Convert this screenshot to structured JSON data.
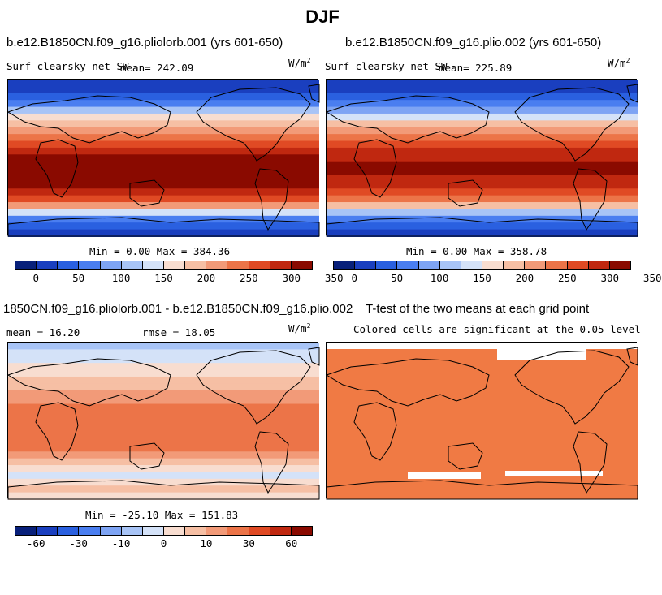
{
  "title": "DJF",
  "colors": {
    "sw_scale": [
      "#08207a",
      "#1a3fbf",
      "#2a60e0",
      "#4a7ef0",
      "#7ea4f4",
      "#a8c4f6",
      "#d4e2f8",
      "#f8ddd0",
      "#f6bfa4",
      "#f29a78",
      "#ec7448",
      "#e04a24",
      "#c02810",
      "#8a0a00"
    ],
    "diff_scale": [
      "#08207a",
      "#1a3fbf",
      "#2a60e0",
      "#4a7ef0",
      "#7ea4f4",
      "#a8c4f6",
      "#d4e2f8",
      "#f8ddd0",
      "#f6bfa4",
      "#f29a78",
      "#ec7448",
      "#e04a24",
      "#c02810",
      "#8a0a00"
    ],
    "significant": "#f07a44"
  },
  "chart_data": [
    {
      "type": "heatmap",
      "title": "b.e12.B1850CN.f09_g16.pliolorb.001 (yrs 601-650)",
      "variable": "Surf clearsky net SW",
      "mean_label": "mean= 242.09",
      "units": "W/m",
      "units_exp": "2",
      "minmax_label": "Min =   0.00 Max = 384.36",
      "min": 0.0,
      "max": 384.36,
      "mean": 242.09,
      "colorbar_ticks": [
        "0",
        "50",
        "100",
        "150",
        "200",
        "250",
        "300",
        "350"
      ]
    },
    {
      "type": "heatmap",
      "title": "b.e12.B1850CN.f09_g16.plio.002 (yrs 601-650)",
      "variable": "Surf clearsky net SW",
      "mean_label": "mean= 225.89",
      "units": "W/m",
      "units_exp": "2",
      "minmax_label": "Min =   0.00 Max = 358.78",
      "min": 0.0,
      "max": 358.78,
      "mean": 225.89,
      "colorbar_ticks": [
        "0",
        "50",
        "100",
        "150",
        "200",
        "250",
        "300",
        "350"
      ]
    },
    {
      "type": "heatmap",
      "title": "1850CN.f09_g16.pliolorb.001 - b.e12.B1850CN.f09_g16.plio.002",
      "mean_label": "mean =  16.20",
      "rmse_label": "rmse =  18.05",
      "units": "W/m",
      "units_exp": "2",
      "minmax_label": "Min = -25.10 Max = 151.83",
      "min": -25.1,
      "max": 151.83,
      "mean": 16.2,
      "rmse": 18.05,
      "colorbar_ticks": [
        "-60",
        "-30",
        "-10",
        "0",
        "10",
        "30",
        "60"
      ]
    },
    {
      "type": "heatmap",
      "title": "T-test of the two means at each grid point",
      "subtitle": "Colored cells are significant at the 0.05 level"
    }
  ]
}
